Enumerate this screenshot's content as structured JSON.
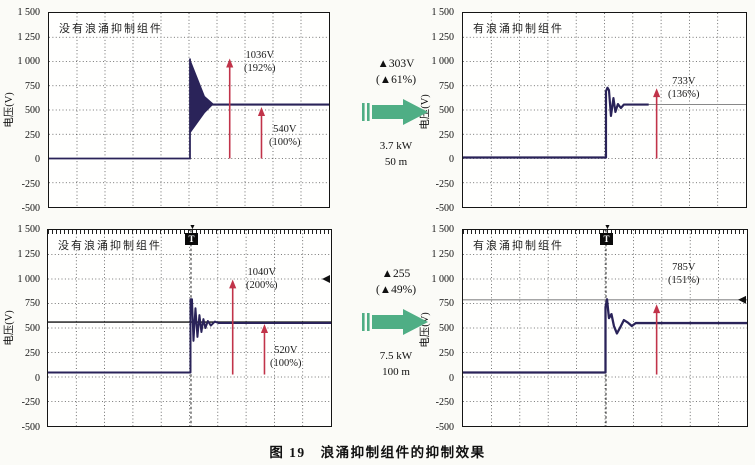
{
  "figure": {
    "caption": "图 19　浪涌抑制组件的抑制效果",
    "trigger_label": "T"
  },
  "axis": {
    "ylabel": "电压(V)",
    "ticks": [
      "1 500",
      "1 250",
      "1 000",
      "750",
      "500",
      "250",
      "0",
      "-250",
      "-500"
    ]
  },
  "charts": {
    "tl": {
      "title": "没有浪涌抑制组件",
      "ann1": "1036V",
      "ann1_pct": "(192%)",
      "ann2": "540V",
      "ann2_pct": "(100%)"
    },
    "tr": {
      "title": "有浪涌抑制组件",
      "ann1": "733V",
      "ann1_pct": "(136%)"
    },
    "bl": {
      "title": "没有浪涌抑制组件",
      "ann1": "1040V",
      "ann1_pct": "(200%)",
      "ann2": "520V",
      "ann2_pct": "(100%)"
    },
    "br": {
      "title": "有浪涌抑制组件",
      "ann1": "785V",
      "ann1_pct": "(151%)"
    }
  },
  "middle": {
    "top": {
      "delta": "▲303V",
      "delta_pct": "(▲61%)",
      "power": "3.7 kW",
      "length": "50 m"
    },
    "bottom": {
      "delta": "▲255",
      "delta_pct": "(▲49%)",
      "power": "7.5 kW",
      "length": "100 m"
    }
  },
  "colors": {
    "trace_navy": "#2a2359",
    "measure_red": "#c13349",
    "transition_green": "#4fae85",
    "cursor_gray": "#888888",
    "cursor_black": "#111111"
  },
  "chart_data": [
    {
      "id": "top-left",
      "type": "line",
      "title": "没有浪涌抑制组件",
      "ylabel": "电压(V)",
      "ylim": [
        -500,
        1500
      ],
      "ytick_step": 250,
      "x_divisions": 10,
      "grid": true,
      "baseline_v": 0,
      "step_at_fraction": 0.5,
      "surge_peak_v": 1036,
      "steady_v": 540,
      "annotations": [
        {
          "value": "1036V",
          "percent": "(192%)"
        },
        {
          "value": "540V",
          "percent": "(100%)"
        }
      ],
      "trigger_marker": false
    },
    {
      "id": "top-right",
      "type": "line",
      "title": "有浪涌抑制组件",
      "ylabel": "电压(V)",
      "ylim": [
        -500,
        1500
      ],
      "ytick_step": 250,
      "x_divisions": 10,
      "grid": true,
      "baseline_v": 15,
      "step_at_fraction": 0.5,
      "surge_peak_v": 733,
      "steady_v": 560,
      "annotations": [
        {
          "value": "733V",
          "percent": "(136%)"
        }
      ],
      "cursor_line_v": 560,
      "trigger_marker": false,
      "improvement": {
        "delta": "▲303V",
        "delta_pct": "(▲61%)",
        "condition": "3.7 kW, 50 m"
      }
    },
    {
      "id": "bottom-left",
      "type": "line",
      "title": "没有浪涌抑制组件",
      "ylabel": "电压(V)",
      "ylim": [
        -500,
        1500
      ],
      "ytick_step": 250,
      "x_divisions": 10,
      "grid": true,
      "baseline_v": 45,
      "step_at_fraction": 0.5,
      "surge_peak_v": 1040,
      "steady_v": 520,
      "annotations": [
        {
          "value": "1040V",
          "percent": "(200%)"
        },
        {
          "value": "520V",
          "percent": "(100%)"
        }
      ],
      "cursor_line_v": 560,
      "edge_marker_v": 1000,
      "trigger_marker": true
    },
    {
      "id": "bottom-right",
      "type": "line",
      "title": "有浪涌抑制组件",
      "ylabel": "电压(V)",
      "ylim": [
        -500,
        1500
      ],
      "ytick_step": 250,
      "x_divisions": 10,
      "grid": true,
      "baseline_v": 45,
      "step_at_fraction": 0.5,
      "surge_peak_v": 785,
      "steady_v": 550,
      "annotations": [
        {
          "value": "785V",
          "percent": "(151%)"
        }
      ],
      "cursor_line_v": 785,
      "edge_marker_v": 785,
      "trigger_marker": true,
      "improvement": {
        "delta": "▲255",
        "delta_pct": "(▲49%)",
        "condition": "7.5 kW, 100 m"
      }
    }
  ]
}
